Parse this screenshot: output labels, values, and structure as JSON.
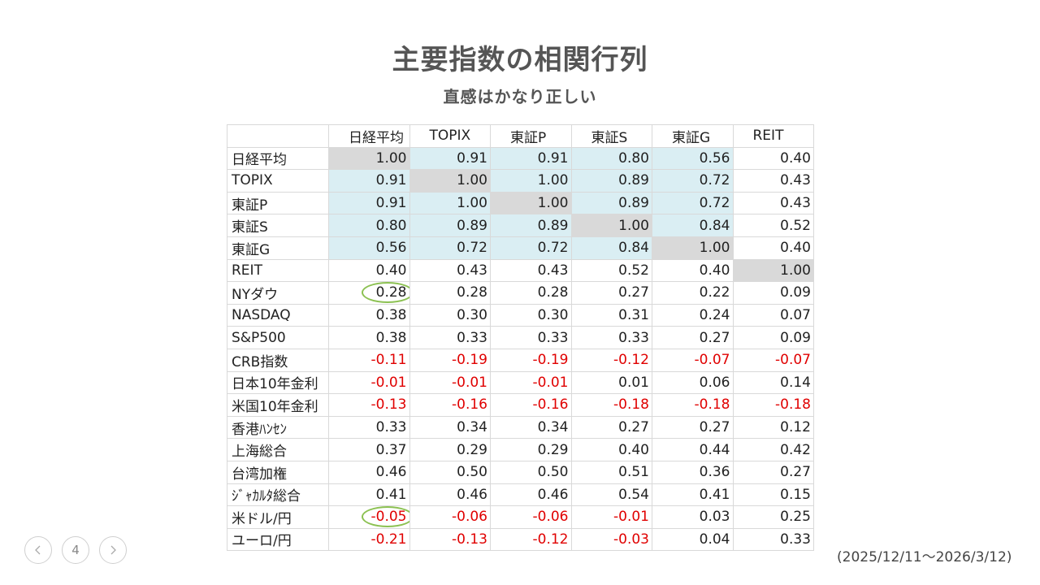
{
  "title": "主要指数の相関行列",
  "subtitle": "直感はかなり正しい",
  "table": {
    "columns": [
      "日経平均",
      "TOPIX",
      "東証P",
      "東証S",
      "東証G",
      "REIT"
    ],
    "rows": [
      {
        "label": "日経平均",
        "values": [
          "1.00",
          "0.91",
          "0.91",
          "0.80",
          "0.56",
          "0.40"
        ]
      },
      {
        "label": "TOPIX",
        "values": [
          "0.91",
          "1.00",
          "1.00",
          "0.89",
          "0.72",
          "0.43"
        ]
      },
      {
        "label": "東証P",
        "values": [
          "0.91",
          "1.00",
          "1.00",
          "0.89",
          "0.72",
          "0.43"
        ]
      },
      {
        "label": "東証S",
        "values": [
          "0.80",
          "0.89",
          "0.89",
          "1.00",
          "0.84",
          "0.52"
        ]
      },
      {
        "label": "東証G",
        "values": [
          "0.56",
          "0.72",
          "0.72",
          "0.84",
          "1.00",
          "0.40"
        ]
      },
      {
        "label": "REIT",
        "values": [
          "0.40",
          "0.43",
          "0.43",
          "0.52",
          "0.40",
          "1.00"
        ]
      },
      {
        "label": "NYダウ",
        "values": [
          "0.28",
          "0.28",
          "0.28",
          "0.27",
          "0.22",
          "0.09"
        ]
      },
      {
        "label": "NASDAQ",
        "values": [
          "0.38",
          "0.30",
          "0.30",
          "0.31",
          "0.24",
          "0.07"
        ]
      },
      {
        "label": "S&P500",
        "values": [
          "0.38",
          "0.33",
          "0.33",
          "0.33",
          "0.27",
          "0.09"
        ]
      },
      {
        "label": "CRB指数",
        "values": [
          "-0.11",
          "-0.19",
          "-0.19",
          "-0.12",
          "-0.07",
          "-0.07"
        ]
      },
      {
        "label": "日本10年金利",
        "values": [
          "-0.01",
          "-0.01",
          "-0.01",
          "0.01",
          "0.06",
          "0.14"
        ]
      },
      {
        "label": "米国10年金利",
        "values": [
          "-0.13",
          "-0.16",
          "-0.16",
          "-0.18",
          "-0.18",
          "-0.18"
        ]
      },
      {
        "label": "香港ﾊﾝｾﾝ",
        "values": [
          "0.33",
          "0.34",
          "0.34",
          "0.27",
          "0.27",
          "0.12"
        ]
      },
      {
        "label": "上海総合",
        "values": [
          "0.37",
          "0.29",
          "0.29",
          "0.40",
          "0.44",
          "0.42"
        ]
      },
      {
        "label": "台湾加権",
        "values": [
          "0.46",
          "0.50",
          "0.50",
          "0.51",
          "0.36",
          "0.27"
        ]
      },
      {
        "label": "ｼﾞｬｶﾙﾀ総合",
        "values": [
          "0.41",
          "0.46",
          "0.46",
          "0.54",
          "0.41",
          "0.15"
        ]
      },
      {
        "label": "米ドル/円",
        "values": [
          "-0.05",
          "-0.06",
          "-0.06",
          "-0.01",
          "0.03",
          "0.25"
        ]
      },
      {
        "label": "ユーロ/円",
        "values": [
          "-0.21",
          "-0.13",
          "-0.12",
          "-0.03",
          "0.04",
          "0.33"
        ]
      }
    ],
    "circled_cells": [
      {
        "row_label": "NYダウ",
        "column": "日経平均"
      },
      {
        "row_label": "米ドル/円",
        "column": "日経平均"
      }
    ]
  },
  "colors": {
    "diagonal": "#d9d9d9",
    "high_correlation": "#daeef3",
    "negative_text": "#e00000",
    "circle": "#8cc152"
  },
  "nav": {
    "page_number": "4",
    "prev_icon": "chevron-left-icon",
    "next_icon": "chevron-right-icon"
  },
  "date_range": "(2025/12/11〜2026/3/12)"
}
